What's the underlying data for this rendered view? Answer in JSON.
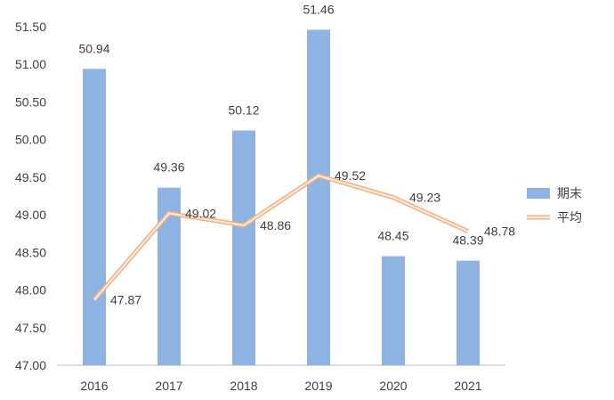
{
  "chart_data": {
    "type": "bar",
    "categories": [
      "2016",
      "2017",
      "2018",
      "2019",
      "2020",
      "2021"
    ],
    "series": [
      {
        "name": "期末",
        "type": "bar",
        "values": [
          50.94,
          49.36,
          50.12,
          51.46,
          48.45,
          48.39
        ],
        "labels": [
          "50.94",
          "49.36",
          "50.12",
          "51.46",
          "48.45",
          "48.39"
        ],
        "color": "#8EB4E3"
      },
      {
        "name": "平均",
        "type": "line",
        "values": [
          47.87,
          49.02,
          48.86,
          49.52,
          49.23,
          48.78
        ],
        "labels": [
          "47.87",
          "49.02",
          "48.86",
          "49.52",
          "49.23",
          "48.78"
        ],
        "color": "#F8CBAD"
      }
    ],
    "ylim": [
      47.0,
      51.5
    ],
    "y_ticks": [
      "47.00",
      "47.50",
      "48.00",
      "48.50",
      "49.00",
      "49.50",
      "50.00",
      "50.50",
      "51.00",
      "51.50"
    ],
    "grid": false,
    "legend_position": "right",
    "title": "",
    "xlabel": "",
    "ylabel": ""
  }
}
